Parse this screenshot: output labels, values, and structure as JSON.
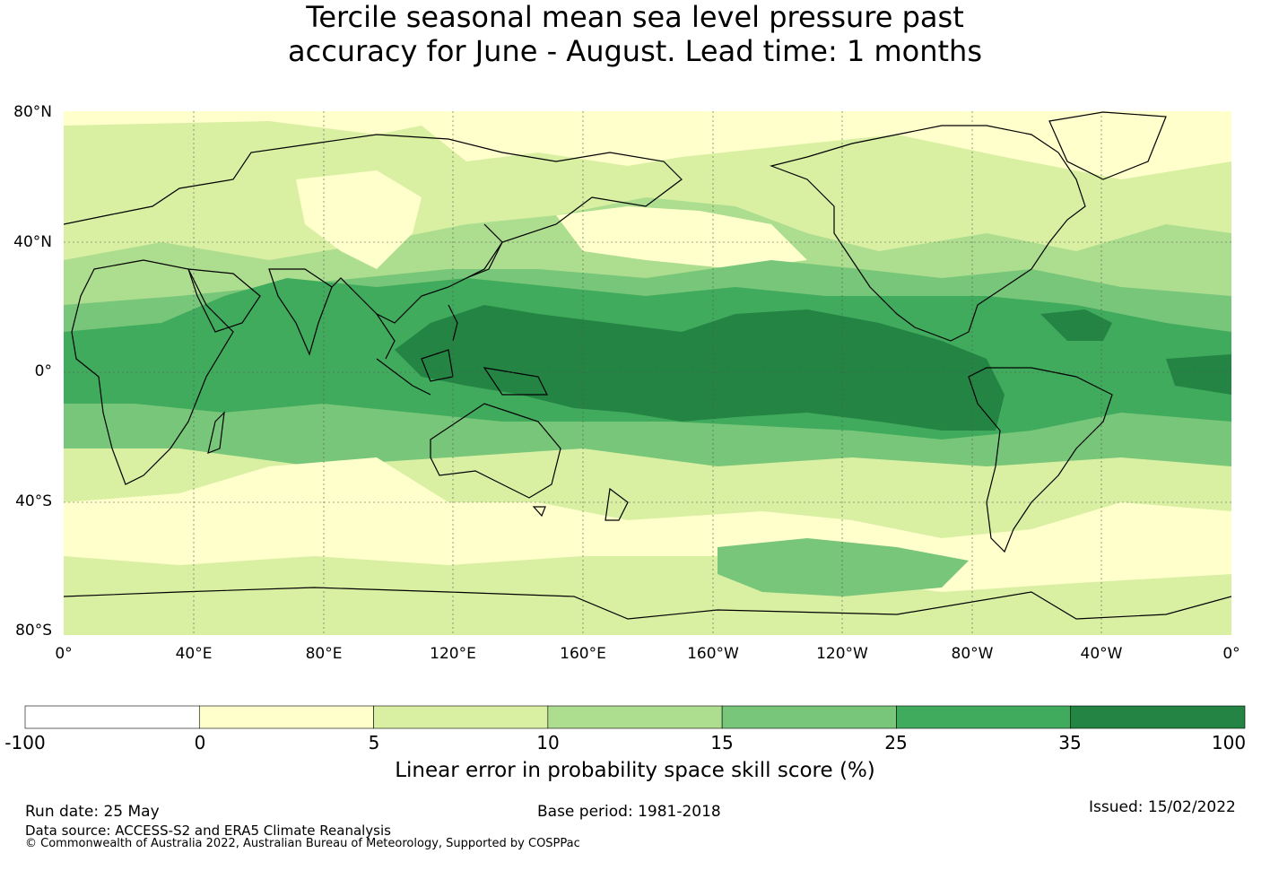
{
  "title_line1": "Tercile seasonal mean sea level pressure past",
  "title_line2": "accuracy for June - August. Lead time: 1 months",
  "latitude_labels": [
    "80°N",
    "40°N",
    "0°",
    "40°S",
    "80°S"
  ],
  "longitude_labels": [
    "0°",
    "40°E",
    "80°E",
    "120°E",
    "160°E",
    "160°W",
    "120°W",
    "80°W",
    "40°W",
    "0°"
  ],
  "colorbar": {
    "tick_labels": [
      "-100",
      "0",
      "5",
      "10",
      "15",
      "25",
      "35",
      "100"
    ],
    "colors": [
      "#ffffff",
      "#ffffcc",
      "#d9f0a3",
      "#addd8e",
      "#78c679",
      "#41ab5d",
      "#238443"
    ],
    "label": "Linear error in probability space skill score (%)"
  },
  "footer": {
    "run_date": "Run date: 25 May",
    "base_period": "Base period: 1981-2018",
    "issued": "Issued: 15/02/2022",
    "data_source": "Data source: ACCESS-S2 and ERA5 Climate Reanalysis",
    "copyright": "© Commonwealth of Australia 2022, Australian Bureau of Meteorology, Supported by COSPPac"
  }
}
